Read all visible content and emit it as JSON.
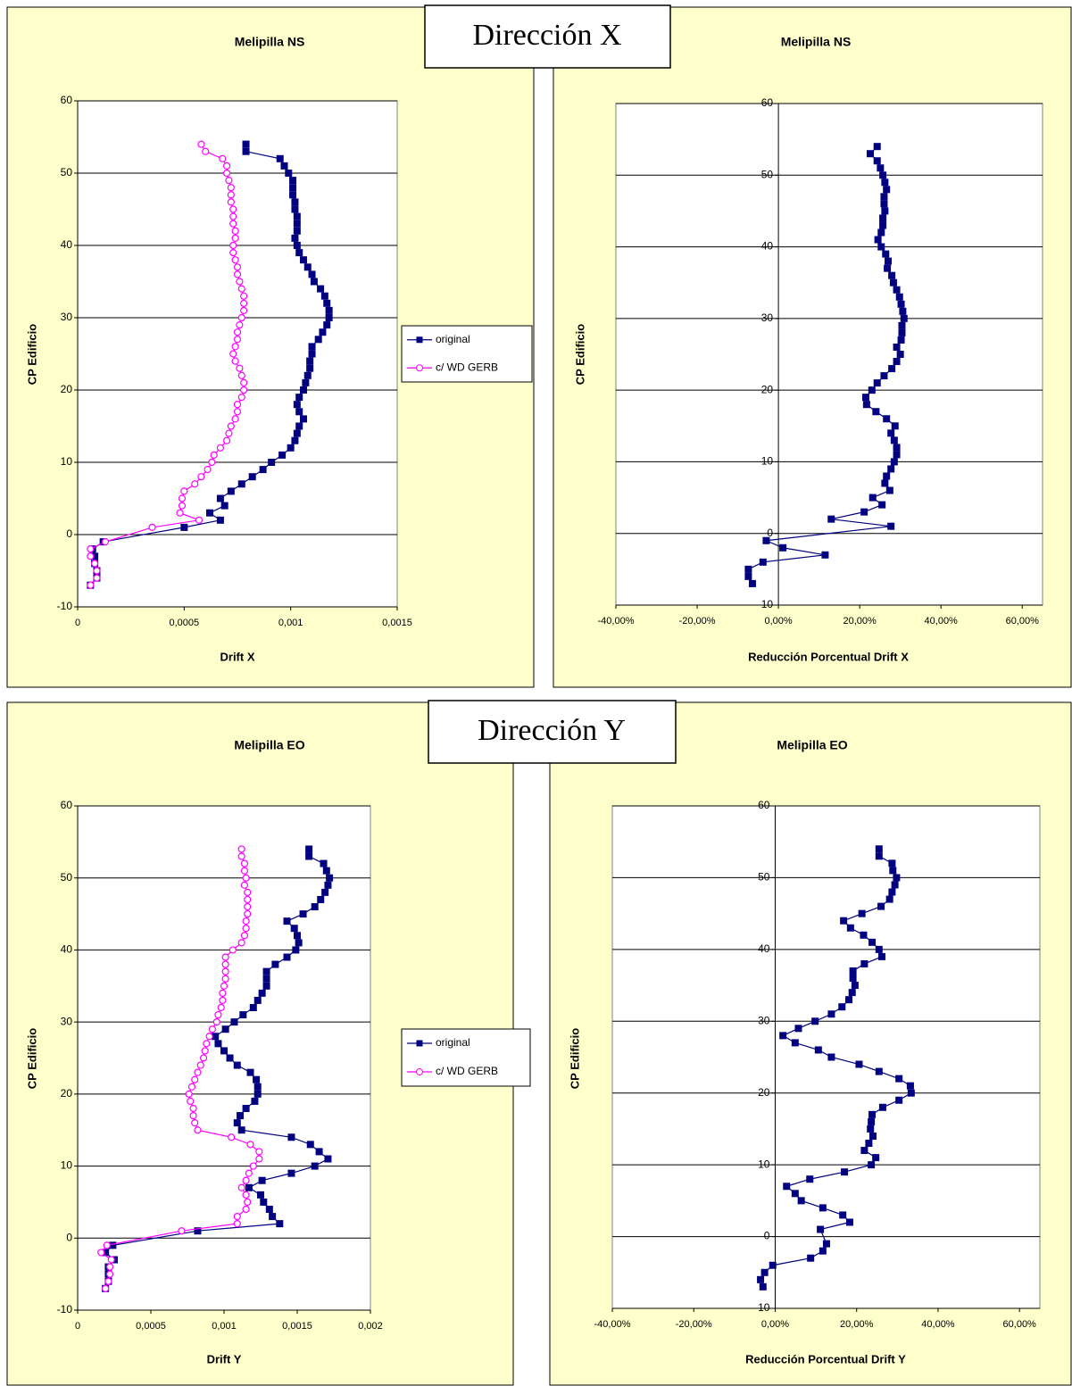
{
  "headers": [
    "Dirección X",
    "Dirección Y"
  ],
  "chart_data": [
    {
      "type": "line",
      "title": "Melipilla NS",
      "x_label": "Drift X",
      "y_label": "CP Edificio",
      "xlim": [
        0,
        0.0015
      ],
      "xticks": [
        0,
        {
          "value": 0.0005,
          "label": "0,0005"
        },
        {
          "value": 0.001,
          "label": "0,001"
        },
        {
          "value": 0.0015,
          "label": "0,0015"
        }
      ],
      "ylim": [
        -10,
        60
      ],
      "yticks": [
        -10,
        0,
        10,
        20,
        30,
        40,
        50,
        60
      ],
      "grid": true,
      "legend": "right",
      "y": [
        54,
        53,
        52,
        51,
        50,
        49,
        48,
        47,
        46,
        45,
        44,
        43,
        42,
        41,
        40,
        39,
        38,
        37,
        36,
        35,
        34,
        33,
        32,
        31,
        30,
        29,
        28,
        27,
        26,
        25,
        24,
        23,
        22,
        21,
        20,
        19,
        18,
        17,
        16,
        15,
        14,
        13,
        12,
        11,
        10,
        9,
        8,
        7,
        6,
        5,
        4,
        3,
        2,
        1,
        -1,
        -2,
        -3,
        -4,
        -5,
        -6,
        -7
      ],
      "series": [
        {
          "name": "original",
          "color": "#000080",
          "marker": "square",
          "values": [
            0.00079,
            0.00079,
            0.00095,
            0.00097,
            0.00099,
            0.00101,
            0.00101,
            0.00101,
            0.00102,
            0.00102,
            0.00103,
            0.00103,
            0.00103,
            0.00102,
            0.00103,
            0.00104,
            0.00106,
            0.00108,
            0.0011,
            0.00111,
            0.00114,
            0.00116,
            0.00117,
            0.00118,
            0.00118,
            0.00117,
            0.00115,
            0.00113,
            0.0011,
            0.0011,
            0.00109,
            0.00109,
            0.00108,
            0.00107,
            0.00106,
            0.00104,
            0.00103,
            0.00104,
            0.00106,
            0.00104,
            0.00103,
            0.00102,
            0.001,
            0.00096,
            0.00091,
            0.00087,
            0.00082,
            0.00077,
            0.00072,
            0.00067,
            0.00069,
            0.00062,
            0.00067,
            0.0005,
            0.00012,
            7e-05,
            8e-05,
            8e-05,
            9e-05,
            9e-05,
            6e-05
          ]
        },
        {
          "name": "c/ WD GERB",
          "color": "#FF00FF",
          "marker": "circle",
          "values": [
            0.00058,
            0.0006,
            0.00068,
            0.0007,
            0.0007,
            0.00071,
            0.00072,
            0.00072,
            0.00072,
            0.00073,
            0.00073,
            0.00073,
            0.00074,
            0.00074,
            0.00073,
            0.00073,
            0.00074,
            0.00075,
            0.00075,
            0.00076,
            0.00077,
            0.00078,
            0.00078,
            0.00078,
            0.00077,
            0.00076,
            0.00075,
            0.00075,
            0.00074,
            0.00073,
            0.00074,
            0.00076,
            0.00077,
            0.00078,
            0.00078,
            0.00077,
            0.00075,
            0.00075,
            0.00074,
            0.00072,
            0.00071,
            0.0007,
            0.00067,
            0.00064,
            0.00063,
            0.00061,
            0.00058,
            0.00055,
            0.0005,
            0.00049,
            0.00049,
            0.00048,
            0.00057,
            0.00035,
            0.00013,
            6e-05,
            6e-05,
            8e-05,
            9e-05,
            9e-05,
            6e-05
          ]
        }
      ]
    },
    {
      "type": "line",
      "title": "Melipilla NS",
      "x_label": "Reducción Porcentual Drift X",
      "y_label": "CP Edificio",
      "xlim": [
        -40,
        65
      ],
      "xticks": [
        {
          "value": -40,
          "label": "-40,00%"
        },
        {
          "value": -20,
          "label": "-20,00%"
        },
        {
          "value": 0,
          "label": "0,00%"
        },
        {
          "value": 20,
          "label": "20,00%"
        },
        {
          "value": 40,
          "label": "40,00%"
        },
        {
          "value": 60,
          "label": "60,00%"
        }
      ],
      "ylim": [
        -10,
        60
      ],
      "yticks": [
        -10,
        0,
        10,
        20,
        30,
        40,
        50,
        60
      ],
      "grid": true,
      "y": [
        54,
        53,
        52,
        51,
        50,
        49,
        48,
        47,
        46,
        45,
        44,
        43,
        42,
        41,
        40,
        39,
        38,
        37,
        36,
        35,
        34,
        33,
        32,
        31,
        30,
        29,
        28,
        27,
        26,
        25,
        24,
        23,
        22,
        21,
        20,
        19,
        18,
        17,
        16,
        15,
        14,
        13,
        12,
        11,
        10,
        9,
        8,
        7,
        6,
        5,
        4,
        3,
        2,
        1,
        -1,
        -2,
        -3,
        -4,
        -5,
        -6,
        -7
      ],
      "series": [
        {
          "color": "#000080",
          "marker": "square",
          "values": [
            24.3,
            22.6,
            24.3,
            25.1,
            25.7,
            26.2,
            26.6,
            26,
            26,
            26.2,
            25.7,
            25.7,
            25.3,
            24.5,
            25.3,
            26.4,
            27,
            26.8,
            27.9,
            28.3,
            29.1,
            29.8,
            30.2,
            30.6,
            30.9,
            30.4,
            30.4,
            30.2,
            29.1,
            30,
            29.1,
            27.9,
            26,
            24.3,
            23,
            21.5,
            21.7,
            24,
            26.6,
            28.7,
            27.7,
            28.5,
            29.1,
            29.1,
            28.5,
            27.7,
            26.6,
            26.2,
            27.4,
            23.2,
            25.5,
            21.1,
            13,
            27.7,
            -3,
            1.1,
            11.5,
            -3.8,
            -7.4,
            -7.4,
            -6.4
          ]
        }
      ]
    },
    {
      "type": "line",
      "title": "Melipilla EO",
      "x_label": "Drift Y",
      "y_label": "CP Edificio",
      "xlim": [
        0,
        0.002
      ],
      "xticks": [
        0,
        {
          "value": 0.0005,
          "label": "0,0005"
        },
        {
          "value": 0.001,
          "label": "0,001"
        },
        {
          "value": 0.0015,
          "label": "0,0015"
        },
        {
          "value": 0.002,
          "label": "0,002"
        }
      ],
      "ylim": [
        -10,
        60
      ],
      "yticks": [
        -10,
        0,
        10,
        20,
        30,
        40,
        50,
        60
      ],
      "grid": true,
      "legend": "right",
      "y": [
        54,
        53,
        52,
        51,
        50,
        49,
        48,
        47,
        46,
        45,
        44,
        43,
        42,
        41,
        40,
        39,
        38,
        37,
        36,
        35,
        34,
        33,
        32,
        31,
        30,
        29,
        28,
        27,
        26,
        25,
        24,
        23,
        22,
        21,
        20,
        19,
        18,
        17,
        16,
        15,
        14,
        13,
        12,
        11,
        10,
        9,
        8,
        7,
        6,
        5,
        4,
        3,
        2,
        1,
        -1,
        -2,
        -3,
        -4,
        -5,
        -6,
        -7
      ],
      "series": [
        {
          "name": "original",
          "color": "#000080",
          "marker": "square",
          "values": [
            0.00158,
            0.00158,
            0.00168,
            0.0017,
            0.00172,
            0.00171,
            0.00169,
            0.00166,
            0.00162,
            0.00154,
            0.00143,
            0.00148,
            0.0015,
            0.00151,
            0.00149,
            0.00143,
            0.00135,
            0.00129,
            0.00129,
            0.00129,
            0.00126,
            0.00123,
            0.0012,
            0.00113,
            0.00107,
            0.00101,
            0.00094,
            0.00096,
            0.001,
            0.00104,
            0.00109,
            0.00118,
            0.00122,
            0.00123,
            0.00123,
            0.00121,
            0.00115,
            0.00111,
            0.00109,
            0.00112,
            0.00146,
            0.00159,
            0.00165,
            0.00171,
            0.00162,
            0.00146,
            0.00126,
            0.00117,
            0.00125,
            0.00127,
            0.00131,
            0.00133,
            0.00138,
            0.00082,
            0.00024,
            0.00019,
            0.00025,
            0.00021,
            0.00021,
            0.00021,
            0.00019
          ]
        },
        {
          "name": "c/ WD GERB",
          "color": "#FF00FF",
          "marker": "circle",
          "values": [
            0.00112,
            0.00112,
            0.00114,
            0.00114,
            0.00115,
            0.00114,
            0.00116,
            0.00116,
            0.00116,
            0.00116,
            0.00115,
            0.00115,
            0.00114,
            0.00112,
            0.00106,
            0.00101,
            0.00101,
            0.00101,
            0.00101,
            0.001,
            0.00099,
            0.00099,
            0.00098,
            0.00096,
            0.00095,
            0.00092,
            0.0009,
            0.00088,
            0.00087,
            0.00086,
            0.00084,
            0.00082,
            0.0008,
            0.00078,
            0.00076,
            0.00077,
            0.00079,
            0.00079,
            0.0008,
            0.00082,
            0.00105,
            0.00118,
            0.00124,
            0.00124,
            0.0012,
            0.00117,
            0.00115,
            0.00112,
            0.00115,
            0.00116,
            0.00115,
            0.00109,
            0.00109,
            0.00071,
            0.0002,
            0.00016,
            0.00023,
            0.00022,
            0.00022,
            0.00021,
            0.00019
          ]
        }
      ]
    },
    {
      "type": "line",
      "title": "Melipilla EO",
      "x_label": "Reducción Porcentual Drift Y",
      "y_label": "CP Edificio",
      "xlim": [
        -40,
        65
      ],
      "xticks": [
        {
          "value": -40,
          "label": "-40,00%"
        },
        {
          "value": -20,
          "label": "-20,00%"
        },
        {
          "value": 0,
          "label": "0,00%"
        },
        {
          "value": 20,
          "label": "20,00%"
        },
        {
          "value": 40,
          "label": "40,00%"
        },
        {
          "value": 60,
          "label": "60,00%"
        }
      ],
      "ylim": [
        -10,
        60
      ],
      "yticks": [
        -10,
        0,
        10,
        20,
        30,
        40,
        50,
        60
      ],
      "grid": true,
      "y": [
        54,
        53,
        52,
        51,
        50,
        49,
        48,
        47,
        46,
        45,
        44,
        43,
        42,
        41,
        40,
        39,
        38,
        37,
        36,
        35,
        34,
        33,
        32,
        31,
        30,
        29,
        28,
        27,
        26,
        25,
        24,
        23,
        22,
        21,
        20,
        19,
        18,
        17,
        16,
        15,
        14,
        13,
        12,
        11,
        10,
        9,
        8,
        7,
        6,
        5,
        4,
        3,
        2,
        1,
        -1,
        -2,
        -3,
        -4,
        -5,
        -6,
        -7
      ],
      "series": [
        {
          "color": "#000080",
          "marker": "square",
          "values": [
            25.5,
            25.5,
            28.7,
            28.9,
            29.8,
            29.4,
            28.7,
            28.1,
            26,
            21.3,
            16.8,
            18.5,
            21.7,
            23.8,
            25.5,
            26.2,
            21.9,
            19.1,
            19.1,
            19.6,
            18.9,
            18.1,
            16.4,
            13.8,
            9.8,
            5.7,
            1.9,
            4.9,
            10.6,
            13.8,
            20.6,
            25.5,
            30.4,
            33.2,
            33.4,
            30.4,
            26.4,
            23.8,
            23.6,
            23.4,
            24,
            23,
            21.9,
            24.7,
            23.6,
            17,
            8.5,
            2.8,
            4.9,
            6.4,
            11.7,
            16.6,
            18.3,
            11.1,
            12.6,
            11.7,
            8.7,
            -0.6,
            -2.6,
            -3.6,
            -3
          ]
        }
      ]
    }
  ]
}
